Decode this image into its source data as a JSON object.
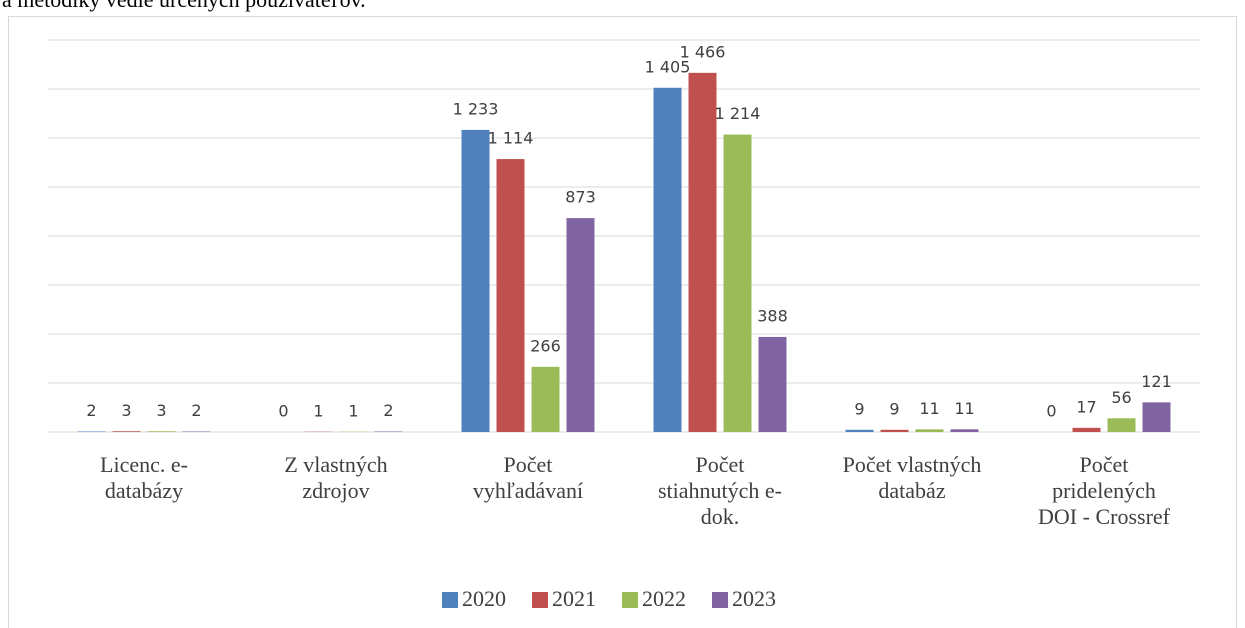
{
  "header_text": "a metodiky vedie určených používateľov.",
  "chart_data": {
    "type": "bar",
    "categories": [
      "Licenc. e-\ndatabázy",
      "Z vlastných\nzdrojov",
      "Počet\nvyhľadávaní",
      "Počet\nstiahnutých e-\ndok.",
      "Počet vlastných\ndatabáz",
      "Počet\npridelených\nDOI - Crossref"
    ],
    "series": [
      {
        "name": "2020",
        "color": "#4f81bd",
        "values": [
          2,
          0,
          1233,
          1405,
          9,
          0
        ],
        "value_labels": [
          "2",
          "0",
          "1 233",
          "1 405",
          "9",
          "0"
        ]
      },
      {
        "name": "2021",
        "color": "#c0504d",
        "values": [
          3,
          1,
          1114,
          1466,
          9,
          17
        ],
        "value_labels": [
          "3",
          "1",
          "1 114",
          "1 466",
          "9",
          "17"
        ]
      },
      {
        "name": "2022",
        "color": "#9bbb59",
        "values": [
          3,
          1,
          266,
          1214,
          11,
          56
        ],
        "value_labels": [
          "3",
          "1",
          "266",
          "1 214",
          "11",
          "56"
        ]
      },
      {
        "name": "2023",
        "color": "#8064a2",
        "values": [
          2,
          2,
          873,
          388,
          11,
          121
        ],
        "value_labels": [
          "2",
          "2",
          "873",
          "388",
          "11",
          "121"
        ]
      }
    ],
    "ylim": [
      0,
      1600
    ],
    "yticks": [
      0,
      200,
      400,
      600,
      800,
      1000,
      1200,
      1400,
      1600
    ],
    "grid": true,
    "legend": "bottom"
  }
}
